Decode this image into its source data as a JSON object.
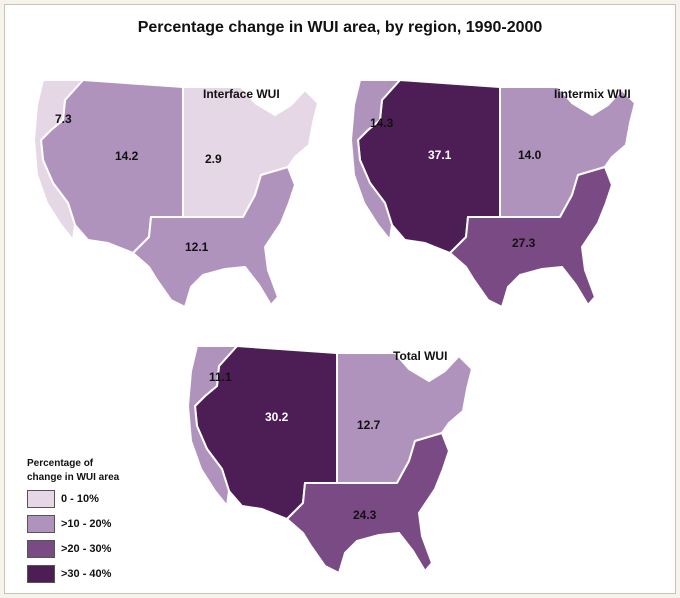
{
  "title": "Percentage change in WUI area, by region, 1990-2000",
  "colors": {
    "c1": "#e6d7e6",
    "c2": "#b093bd",
    "c3": "#7a4a85",
    "c4": "#4d1d55",
    "border": "#ffffff"
  },
  "maps": [
    {
      "label": "Interface WUI",
      "regions": [
        {
          "name": "pacific",
          "value": "7.3",
          "class": "0 - 10%"
        },
        {
          "name": "west",
          "value": "14.2",
          "class": ">10 - 20%"
        },
        {
          "name": "north-east",
          "value": "2.9",
          "class": "0 - 10%"
        },
        {
          "name": "south",
          "value": "12.1",
          "class": ">10 - 20%"
        }
      ]
    },
    {
      "label": "Iintermix WUI",
      "regions": [
        {
          "name": "pacific",
          "value": "14.3",
          "class": ">10 - 20%"
        },
        {
          "name": "west",
          "value": "37.1",
          "class": ">30 - 40%"
        },
        {
          "name": "north-east",
          "value": "14.0",
          "class": ">10 - 20%"
        },
        {
          "name": "south",
          "value": "27.3",
          "class": ">20 - 30%"
        }
      ]
    },
    {
      "label": "Total WUI",
      "regions": [
        {
          "name": "pacific",
          "value": "11.1",
          "class": ">10 - 20%"
        },
        {
          "name": "west",
          "value": "30.2",
          "class": ">30 - 40%"
        },
        {
          "name": "north-east",
          "value": "12.7",
          "class": ">10 - 20%"
        },
        {
          "name": "south",
          "value": "24.3",
          "class": ">20 - 30%"
        }
      ]
    }
  ],
  "legend": {
    "title": "Percentage of\nchange in WUI area",
    "items": [
      {
        "label": "0 - 10%",
        "color": "#e6d7e6"
      },
      {
        "label": ">10 - 20%",
        "color": "#b093bd"
      },
      {
        "label": ">20 - 30%",
        "color": "#7a4a85"
      },
      {
        "label": ">30 - 40%",
        "color": "#4d1d55"
      }
    ]
  }
}
